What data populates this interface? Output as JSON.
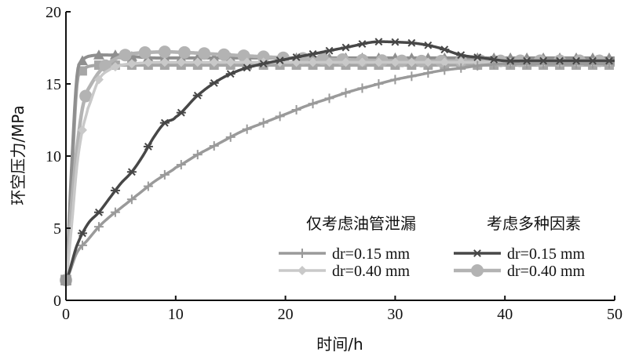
{
  "chart_data": {
    "type": "line",
    "xlabel": "时间/h",
    "ylabel": "环空压力/MPa",
    "xlim": [
      0,
      50
    ],
    "ylim": [
      0,
      20
    ],
    "xticks": [
      0,
      10,
      20,
      30,
      40,
      50
    ],
    "yticks": [
      0,
      5,
      10,
      15,
      20
    ],
    "legend_groups": [
      "仅考虑油管泄漏",
      "考虑多种因素"
    ],
    "legend_placement": "bottom-right",
    "grid": false,
    "series": [
      {
        "name": "dr=0.15 mm",
        "group": 0,
        "marker": "plus",
        "color": "#9a9a9a",
        "x": [
          0,
          1,
          2,
          3,
          4,
          5,
          6,
          7,
          8,
          9,
          10,
          12,
          14,
          16,
          18,
          20,
          22,
          24,
          26,
          28,
          30,
          32,
          34,
          36,
          38,
          40,
          42,
          44,
          46,
          48,
          50
        ],
        "y": [
          1.4,
          3.3,
          4.2,
          5.1,
          5.8,
          6.4,
          7.0,
          7.6,
          8.2,
          8.7,
          9.2,
          10.1,
          10.9,
          11.7,
          12.3,
          12.9,
          13.5,
          14.0,
          14.5,
          14.9,
          15.3,
          15.6,
          15.9,
          16.1,
          16.3,
          16.4,
          16.4,
          16.4,
          16.4,
          16.4,
          16.4
        ]
      },
      {
        "name": "dr=0.40 mm",
        "group": 0,
        "marker": "diamond",
        "color": "#c9c9c9",
        "x": [
          0,
          0.5,
          1,
          1.5,
          2,
          3,
          4,
          5,
          6,
          8,
          10,
          15,
          20,
          30,
          40,
          50
        ],
        "y": [
          1.4,
          5.0,
          9.3,
          11.8,
          13.3,
          15.3,
          16.0,
          16.3,
          16.4,
          16.5,
          16.5,
          16.5,
          16.5,
          16.5,
          16.5,
          16.5
        ]
      },
      {
        "name": "dr=0.15 mm",
        "group": 1,
        "marker": "star",
        "color": "#474747",
        "x": [
          0,
          1,
          2,
          3,
          4,
          5,
          6,
          7,
          8,
          9,
          10,
          12,
          14,
          16,
          18,
          20,
          22,
          24,
          26,
          28,
          30,
          32,
          34,
          36,
          38,
          40,
          42,
          44,
          46,
          48,
          50
        ],
        "y": [
          1.4,
          3.8,
          5.3,
          6.1,
          7.1,
          8.1,
          8.9,
          10.0,
          11.3,
          12.3,
          12.7,
          14.2,
          15.3,
          16.0,
          16.4,
          16.7,
          17.0,
          17.3,
          17.6,
          17.9,
          17.9,
          17.8,
          17.5,
          17.0,
          16.8,
          16.6,
          16.6,
          16.6,
          16.6,
          16.6,
          16.6
        ]
      },
      {
        "name": "dr=0.40 mm",
        "group": 1,
        "marker": "circle",
        "color": "#b3b3b3",
        "x": [
          0,
          0.5,
          1,
          1.5,
          2,
          3,
          4,
          5,
          6,
          8,
          10,
          15,
          20,
          30,
          40,
          50
        ],
        "y": [
          1.4,
          6.5,
          10.5,
          13.3,
          14.6,
          15.8,
          16.5,
          16.9,
          17.1,
          17.2,
          17.2,
          17.0,
          16.8,
          16.6,
          16.6,
          16.6
        ]
      },
      {
        "name": "",
        "group": 0,
        "marker": "square",
        "color": "#a6a6a6",
        "x": [
          0,
          0.5,
          1,
          1.5,
          2,
          3,
          4,
          5,
          6,
          8,
          10,
          15,
          20,
          30,
          40,
          50
        ],
        "y": [
          1.4,
          8.0,
          14.9,
          15.9,
          16.2,
          16.3,
          16.3,
          16.3,
          16.3,
          16.3,
          16.3,
          16.3,
          16.3,
          16.3,
          16.3,
          16.3
        ]
      },
      {
        "name": "",
        "group": 1,
        "marker": "triangle",
        "color": "#8f8f8f",
        "x": [
          0,
          0.5,
          1,
          1.5,
          2,
          3,
          4,
          5,
          6,
          8,
          10,
          15,
          20,
          30,
          40,
          50
        ],
        "y": [
          1.4,
          9.0,
          15.5,
          16.6,
          16.9,
          17.0,
          17.0,
          17.0,
          16.9,
          16.8,
          16.8,
          16.8,
          16.8,
          16.8,
          16.8,
          16.8
        ]
      }
    ]
  }
}
